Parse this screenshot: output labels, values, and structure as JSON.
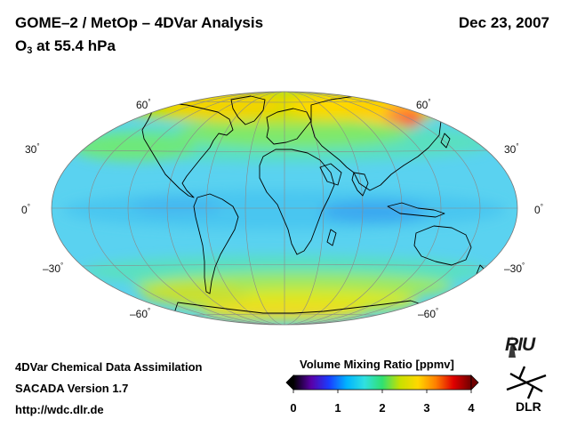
{
  "header": {
    "title": "GOME–2 / MetOp – 4DVar Analysis",
    "subtitle_prefix": "O",
    "subtitle_sub": "3",
    "subtitle_rest": " at 55.4 hPa",
    "date": "Dec 23, 2007"
  },
  "map": {
    "projection": "Hammer-Aitoff",
    "lat_labels": {
      "n60": "60",
      "n30": "30",
      "eq": "0",
      "s30": "–30",
      "s60": "–60"
    },
    "degree_symbol": "°"
  },
  "colorbar": {
    "title": "Volume Mixing Ratio [ppmv]",
    "ticks": [
      "0",
      "1",
      "2",
      "3",
      "4"
    ],
    "min": 0,
    "max": 4,
    "colors": [
      "#000000",
      "#5a00a8",
      "#1a3cff",
      "#00b4ff",
      "#30e0e0",
      "#30e070",
      "#c8e000",
      "#ffd800",
      "#ff8000",
      "#e00000",
      "#700000"
    ]
  },
  "footer": {
    "line1": "4DVar Chemical Data Assimilation",
    "line2": "SACADA Version 1.7",
    "line3": "http://wdc.dlr.de"
  },
  "logos": {
    "riu": "RIU",
    "dlr": "DLR"
  }
}
